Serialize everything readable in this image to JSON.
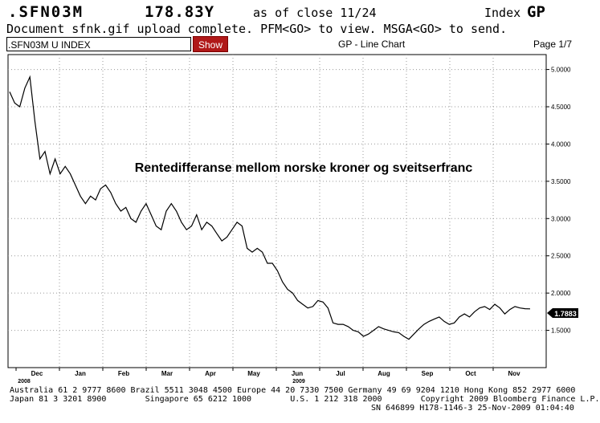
{
  "header": {
    "ticker": ".SFN03M",
    "price": "178.83Y",
    "as_of": "as of close 11/24",
    "index_label": "Index",
    "function_code": "GP"
  },
  "message": "Document sfnk.gif upload complete. PFM<GO> to view. MSGA<GO> to send.",
  "toolbar": {
    "security_value": ".SFN03M U INDEX",
    "show_button": "Show",
    "chart_type": "GP - Line Chart",
    "page": "Page 1/7"
  },
  "chart_data": {
    "type": "line",
    "title": "Rentedifferanse mellom norske kroner og sveitserfranc",
    "xlabel": "",
    "ylabel": "",
    "ylim": [
      1.0,
      5.2
    ],
    "yticks": [
      "5.0000",
      "4.5000",
      "4.0000",
      "3.5000",
      "3.0000",
      "2.5000",
      "2.0000",
      "1.5000"
    ],
    "x_tick_labels": [
      "Dec",
      "Jan",
      "Feb",
      "Mar",
      "Apr",
      "May",
      "Jun",
      "Jul",
      "Aug",
      "Sep",
      "Oct",
      "Nov"
    ],
    "year_labels": [
      "2008",
      "2009"
    ],
    "last_value_label": "1.7883",
    "grid": true,
    "series": [
      {
        "values": [
          4.7,
          4.55,
          4.5,
          4.75,
          4.9,
          4.3,
          3.8,
          3.9,
          3.6,
          3.8,
          3.6,
          3.7,
          3.6,
          3.45,
          3.3,
          3.2,
          3.3,
          3.25,
          3.4,
          3.45,
          3.35,
          3.2,
          3.1,
          3.15,
          3.0,
          2.95,
          3.1,
          3.2,
          3.05,
          2.9,
          2.85,
          3.1,
          3.2,
          3.1,
          2.95,
          2.85,
          2.9,
          3.05,
          2.85,
          2.95,
          2.9,
          2.8,
          2.7,
          2.75,
          2.85,
          2.95,
          2.9,
          2.6,
          2.55,
          2.6,
          2.55,
          2.4,
          2.4,
          2.3,
          2.15,
          2.05,
          2.0,
          1.9,
          1.85,
          1.8,
          1.82,
          1.9,
          1.88,
          1.8,
          1.6,
          1.58,
          1.58,
          1.55,
          1.5,
          1.48,
          1.42,
          1.45,
          1.5,
          1.55,
          1.52,
          1.5,
          1.48,
          1.47,
          1.42,
          1.38,
          1.45,
          1.52,
          1.58,
          1.62,
          1.65,
          1.68,
          1.62,
          1.58,
          1.6,
          1.68,
          1.72,
          1.68,
          1.75,
          1.8,
          1.82,
          1.78,
          1.85,
          1.8,
          1.72,
          1.78,
          1.82,
          1.8,
          1.79,
          1.7883
        ]
      }
    ]
  },
  "footer": {
    "line1": "Australia 61 2 9777 8600 Brazil 5511 3048 4500 Europe 44 20 7330 7500 Germany 49 69 9204 1210 Hong Kong 852 2977 6000",
    "line2": "Japan 81 3 3201 8900        Singapore 65 6212 1000        U.S. 1 212 318 2000        Copyright 2009 Bloomberg Finance L.P.",
    "line3": "SN 646899 H178-1146-3 25-Nov-2009 01:04:40"
  },
  "colors": {
    "accent_button": "#b01818",
    "line": "#000000",
    "grid": "#999999"
  }
}
